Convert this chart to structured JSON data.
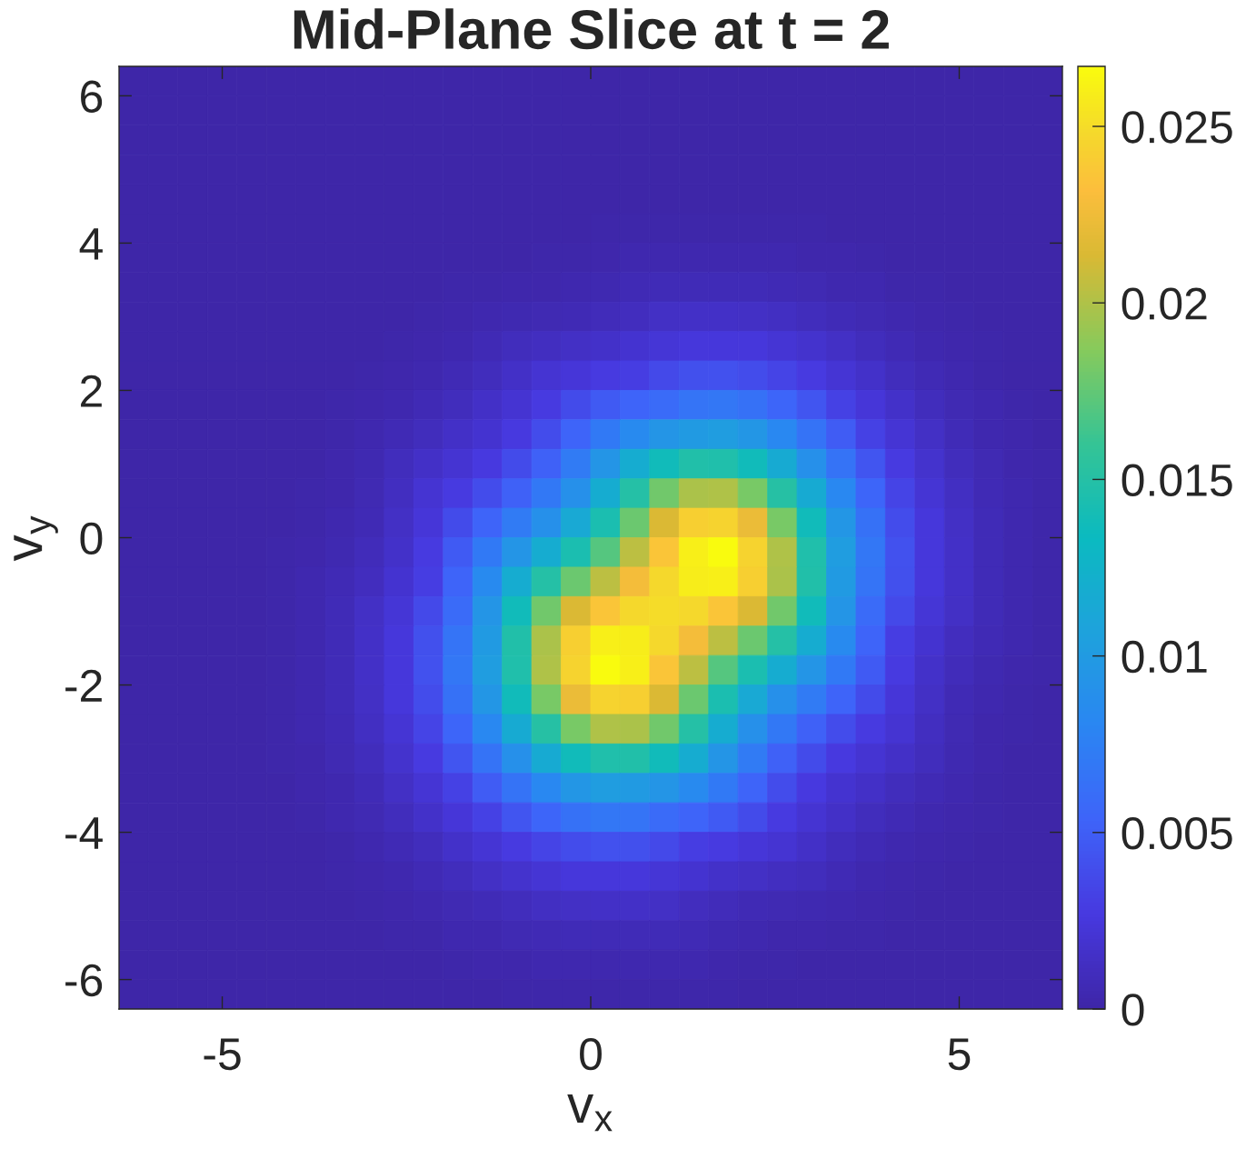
{
  "chart_data": {
    "type": "heatmap",
    "title": "Mid-Plane Slice at t = 2",
    "xlabel": "v$_{x}$",
    "ylabel": "v$_{y}$",
    "xlim": [
      -6.4,
      6.4
    ],
    "ylim": [
      -6.4,
      6.4
    ],
    "xticks": [
      -5,
      0,
      5
    ],
    "yticks": [
      -6,
      -4,
      -2,
      0,
      2,
      4,
      6
    ],
    "clim": [
      0,
      0.0267
    ],
    "cticks": [
      0,
      0.005,
      0.01,
      0.015,
      0.02,
      0.025
    ],
    "cells": [
      [
        0,
        0,
        0,
        0,
        0,
        0,
        0,
        0,
        0,
        0,
        0,
        0,
        0,
        0,
        0,
        0,
        0,
        0,
        0,
        0,
        0,
        0,
        0,
        0,
        0,
        0,
        0,
        0,
        0,
        0,
        0,
        0
      ],
      [
        0,
        0,
        0,
        0,
        0,
        0,
        0,
        0,
        0,
        0,
        0,
        0,
        0,
        0,
        0,
        0,
        0,
        0,
        0,
        0,
        0,
        0,
        0,
        0,
        0,
        0,
        0,
        0,
        0,
        0,
        0,
        0
      ],
      [
        0,
        0,
        0,
        0,
        0,
        0,
        0,
        0,
        0,
        0,
        0,
        0,
        0,
        0,
        0,
        0,
        0,
        0,
        0,
        0,
        0,
        0,
        0,
        0,
        0,
        0,
        0,
        0,
        0,
        0,
        0,
        0
      ],
      [
        0,
        0,
        0,
        0,
        0,
        0,
        0,
        0,
        0,
        0,
        0,
        0,
        0,
        0,
        0,
        0,
        0,
        0,
        0,
        0,
        0,
        0,
        0,
        0,
        0,
        0,
        0,
        0,
        0,
        0,
        0,
        0
      ],
      [
        0,
        0,
        0,
        0,
        0,
        0,
        0,
        0,
        0,
        0,
        0,
        0,
        0,
        0,
        0,
        0,
        0,
        0,
        0,
        0,
        0,
        0,
        0,
        0,
        0,
        0,
        0,
        0,
        0,
        0,
        0,
        0
      ],
      [
        0,
        0,
        0,
        0,
        0,
        0,
        0,
        0,
        0,
        0,
        0,
        0,
        0,
        0,
        0,
        0,
        0.0002,
        0.0002,
        0.0002,
        0.0002,
        0.0002,
        0.0002,
        0.0002,
        0.0002,
        0,
        0,
        0,
        0,
        0,
        0,
        0,
        0
      ],
      [
        0,
        0,
        0,
        0,
        0,
        0,
        0,
        0,
        0,
        0,
        0,
        0,
        0,
        0,
        0.0002,
        0.0002,
        0.0003,
        0.0004,
        0.0004,
        0.0004,
        0.0004,
        0.0004,
        0.0004,
        0.0003,
        0.0003,
        0.0002,
        0,
        0,
        0,
        0,
        0,
        0
      ],
      [
        0,
        0,
        0,
        0,
        0,
        0,
        0,
        0,
        0,
        0,
        0,
        0.0002,
        0.0002,
        0.0003,
        0.0003,
        0.0004,
        0.0005,
        0.0007,
        0.0008,
        0.0008,
        0.0008,
        0.0008,
        0.0007,
        0.0006,
        0.0004,
        0.0004,
        0.0002,
        0.0002,
        0,
        0,
        0,
        0
      ],
      [
        0,
        0,
        0,
        0,
        0,
        0,
        0,
        0,
        0,
        0,
        0.0002,
        0.0003,
        0.0004,
        0.0005,
        0.0006,
        0.0007,
        0.0009,
        0.0011,
        0.0014,
        0.0015,
        0.0015,
        0.0014,
        0.0013,
        0.001,
        0.0008,
        0.0006,
        0.0004,
        0.0003,
        0.0002,
        0,
        0,
        0
      ],
      [
        0,
        0,
        0,
        0,
        0,
        0,
        0,
        0,
        0,
        0.0002,
        0.0003,
        0.0004,
        0.0007,
        0.001,
        0.0012,
        0.0014,
        0.0016,
        0.0019,
        0.0022,
        0.0024,
        0.0025,
        0.0024,
        0.0021,
        0.0018,
        0.0014,
        0.001,
        0.0007,
        0.0004,
        0.0003,
        0.0002,
        0,
        0
      ],
      [
        0,
        0,
        0,
        0,
        0,
        0,
        0,
        0,
        0.0002,
        0.0003,
        0.0004,
        0.0007,
        0.001,
        0.0015,
        0.002,
        0.0023,
        0.0028,
        0.003,
        0.0037,
        0.0041,
        0.0042,
        0.0039,
        0.0034,
        0.0028,
        0.0021,
        0.0016,
        0.001,
        0.0007,
        0.0004,
        0.0002,
        0,
        0
      ],
      [
        0,
        0,
        0,
        0,
        0,
        0,
        0,
        0.0002,
        0.0003,
        0.0004,
        0.0007,
        0.001,
        0.0015,
        0.002,
        0.0028,
        0.0038,
        0.0047,
        0.0054,
        0.0059,
        0.0066,
        0.0068,
        0.0064,
        0.0055,
        0.0044,
        0.0032,
        0.0023,
        0.0016,
        0.001,
        0.0006,
        0.0004,
        0.0002,
        0
      ],
      [
        0,
        0,
        0,
        0,
        0,
        0,
        0,
        0.0002,
        0.0004,
        0.0007,
        0.001,
        0.0015,
        0.0019,
        0.0027,
        0.0039,
        0.0054,
        0.007,
        0.0084,
        0.0094,
        0.01,
        0.0102,
        0.0095,
        0.0082,
        0.0065,
        0.0048,
        0.0032,
        0.0021,
        0.0014,
        0.0008,
        0.0004,
        0.0003,
        0
      ],
      [
        0,
        0,
        0,
        0,
        0,
        0,
        0,
        0.0003,
        0.0005,
        0.001,
        0.0015,
        0.002,
        0.0027,
        0.0038,
        0.0052,
        0.0071,
        0.0094,
        0.0118,
        0.0137,
        0.0148,
        0.0147,
        0.0137,
        0.0116,
        0.009,
        0.0065,
        0.0044,
        0.0028,
        0.0018,
        0.001,
        0.0006,
        0.0003,
        0.0002
      ],
      [
        0,
        0,
        0,
        0,
        0,
        0,
        0.0002,
        0.0003,
        0.0006,
        0.0012,
        0.002,
        0.0028,
        0.0039,
        0.0052,
        0.0069,
        0.009,
        0.0118,
        0.015,
        0.018,
        0.0199,
        0.02,
        0.0182,
        0.0151,
        0.0116,
        0.0082,
        0.0055,
        0.0034,
        0.0021,
        0.0013,
        0.0007,
        0.0004,
        0.0002
      ],
      [
        0,
        0,
        0,
        0,
        0,
        0,
        0.0002,
        0.0004,
        0.0007,
        0.0014,
        0.0023,
        0.0038,
        0.0054,
        0.0071,
        0.009,
        0.0114,
        0.0143,
        0.0178,
        0.0214,
        0.0242,
        0.0245,
        0.0223,
        0.0182,
        0.0137,
        0.0095,
        0.0064,
        0.0039,
        0.0024,
        0.0014,
        0.0008,
        0.0004,
        0.0002
      ],
      [
        0,
        0,
        0,
        0,
        0,
        0.0002,
        0.0003,
        0.0005,
        0.0009,
        0.0016,
        0.0028,
        0.0047,
        0.007,
        0.0094,
        0.0118,
        0.0143,
        0.0171,
        0.0204,
        0.0236,
        0.026,
        0.0266,
        0.0245,
        0.02,
        0.0147,
        0.0102,
        0.0068,
        0.0042,
        0.0025,
        0.0015,
        0.0008,
        0.0004,
        0.0002
      ],
      [
        0,
        0,
        0,
        0,
        0,
        0.0002,
        0.0004,
        0.0007,
        0.0011,
        0.0019,
        0.003,
        0.0054,
        0.0084,
        0.0118,
        0.015,
        0.0178,
        0.0204,
        0.0228,
        0.0248,
        0.0259,
        0.026,
        0.0242,
        0.0199,
        0.0148,
        0.01,
        0.0066,
        0.0041,
        0.0024,
        0.0015,
        0.0008,
        0.0004,
        0.0002
      ],
      [
        0,
        0,
        0,
        0,
        0,
        0.0002,
        0.0004,
        0.0008,
        0.0014,
        0.0022,
        0.0037,
        0.0059,
        0.0094,
        0.0137,
        0.018,
        0.0214,
        0.0236,
        0.0248,
        0.025,
        0.0248,
        0.0236,
        0.0214,
        0.018,
        0.0137,
        0.0094,
        0.0059,
        0.0037,
        0.0022,
        0.0014,
        0.0008,
        0.0004,
        0.0002
      ],
      [
        0,
        0,
        0,
        0,
        0,
        0.0002,
        0.0004,
        0.0008,
        0.0015,
        0.0024,
        0.0041,
        0.0066,
        0.01,
        0.0148,
        0.0199,
        0.0242,
        0.026,
        0.0259,
        0.0248,
        0.0228,
        0.0204,
        0.0178,
        0.015,
        0.0118,
        0.0084,
        0.0054,
        0.003,
        0.0019,
        0.0011,
        0.0007,
        0.0004,
        0.0002
      ],
      [
        0,
        0,
        0,
        0,
        0,
        0.0002,
        0.0004,
        0.0008,
        0.0015,
        0.0025,
        0.0042,
        0.0068,
        0.0102,
        0.0147,
        0.02,
        0.0245,
        0.0266,
        0.026,
        0.0236,
        0.0204,
        0.0171,
        0.0143,
        0.0118,
        0.0094,
        0.007,
        0.0047,
        0.0028,
        0.0016,
        0.0009,
        0.0005,
        0.0003,
        0.0002
      ],
      [
        0,
        0,
        0,
        0,
        0,
        0.0002,
        0.0004,
        0.0008,
        0.0014,
        0.0024,
        0.0039,
        0.0064,
        0.0095,
        0.0137,
        0.0182,
        0.0223,
        0.0245,
        0.0242,
        0.0214,
        0.0178,
        0.0143,
        0.0114,
        0.009,
        0.0071,
        0.0054,
        0.0038,
        0.0023,
        0.0014,
        0.0007,
        0.0004,
        0.0002,
        0
      ],
      [
        0,
        0,
        0,
        0,
        0,
        0.0002,
        0.0004,
        0.0007,
        0.0013,
        0.0021,
        0.0034,
        0.0055,
        0.0082,
        0.0116,
        0.0151,
        0.0182,
        0.02,
        0.0199,
        0.018,
        0.015,
        0.0118,
        0.009,
        0.0069,
        0.0052,
        0.0039,
        0.0028,
        0.002,
        0.0012,
        0.0006,
        0.0003,
        0.0002,
        0
      ],
      [
        0,
        0,
        0,
        0,
        0,
        0.0002,
        0.0003,
        0.0006,
        0.001,
        0.0018,
        0.0028,
        0.0044,
        0.0065,
        0.009,
        0.0116,
        0.0137,
        0.0147,
        0.0148,
        0.0137,
        0.0118,
        0.0094,
        0.0071,
        0.0052,
        0.0038,
        0.0027,
        0.002,
        0.0015,
        0.001,
        0.0005,
        0.0003,
        0,
        0
      ],
      [
        0,
        0,
        0,
        0,
        0,
        0,
        0.0003,
        0.0004,
        0.0008,
        0.0014,
        0.0021,
        0.0032,
        0.0048,
        0.0065,
        0.0082,
        0.0095,
        0.0102,
        0.01,
        0.0094,
        0.0084,
        0.007,
        0.0054,
        0.0039,
        0.0027,
        0.0019,
        0.0015,
        0.001,
        0.0007,
        0.0004,
        0.0002,
        0,
        0
      ],
      [
        0,
        0,
        0,
        0,
        0,
        0,
        0.0002,
        0.0004,
        0.0006,
        0.001,
        0.0016,
        0.0023,
        0.0032,
        0.0044,
        0.0055,
        0.0064,
        0.0068,
        0.0066,
        0.0059,
        0.0054,
        0.0047,
        0.0038,
        0.0028,
        0.002,
        0.0015,
        0.001,
        0.0007,
        0.0004,
        0.0003,
        0.0002,
        0,
        0
      ],
      [
        0,
        0,
        0,
        0,
        0,
        0,
        0,
        0.0002,
        0.0004,
        0.0007,
        0.001,
        0.0016,
        0.0021,
        0.0028,
        0.0034,
        0.0039,
        0.0042,
        0.0041,
        0.0037,
        0.003,
        0.0028,
        0.0023,
        0.002,
        0.0015,
        0.001,
        0.0007,
        0.0004,
        0.0003,
        0.0002,
        0,
        0,
        0
      ],
      [
        0,
        0,
        0,
        0,
        0,
        0,
        0,
        0.0002,
        0.0003,
        0.0004,
        0.0007,
        0.001,
        0.0014,
        0.0018,
        0.0021,
        0.0024,
        0.0025,
        0.0024,
        0.0022,
        0.0019,
        0.0016,
        0.0014,
        0.0012,
        0.001,
        0.0007,
        0.0004,
        0.0003,
        0.0002,
        0,
        0,
        0,
        0
      ],
      [
        0,
        0,
        0,
        0,
        0,
        0,
        0,
        0,
        0.0002,
        0.0003,
        0.0004,
        0.0006,
        0.0008,
        0.001,
        0.0013,
        0.0014,
        0.0015,
        0.0015,
        0.0014,
        0.0011,
        0.0009,
        0.0007,
        0.0006,
        0.0005,
        0.0004,
        0.0003,
        0.0002,
        0,
        0,
        0,
        0,
        0
      ],
      [
        0,
        0,
        0,
        0,
        0,
        0,
        0,
        0,
        0,
        0.0002,
        0.0002,
        0.0004,
        0.0004,
        0.0006,
        0.0007,
        0.0008,
        0.0008,
        0.0008,
        0.0008,
        0.0007,
        0.0005,
        0.0004,
        0.0003,
        0.0003,
        0.0002,
        0.0002,
        0,
        0,
        0,
        0,
        0,
        0
      ],
      [
        0,
        0,
        0,
        0,
        0,
        0,
        0,
        0,
        0,
        0,
        0,
        0.0002,
        0.0003,
        0.0003,
        0.0004,
        0.0004,
        0.0004,
        0.0004,
        0.0004,
        0.0004,
        0.0003,
        0.0002,
        0.0002,
        0,
        0,
        0,
        0,
        0,
        0,
        0,
        0,
        0
      ],
      [
        0,
        0,
        0,
        0,
        0,
        0,
        0,
        0,
        0,
        0,
        0,
        0,
        0,
        0.0002,
        0.0002,
        0.0002,
        0.0002,
        0.0002,
        0.0002,
        0.0002,
        0.0002,
        0,
        0,
        0,
        0,
        0,
        0,
        0,
        0,
        0,
        0,
        0
      ]
    ]
  }
}
